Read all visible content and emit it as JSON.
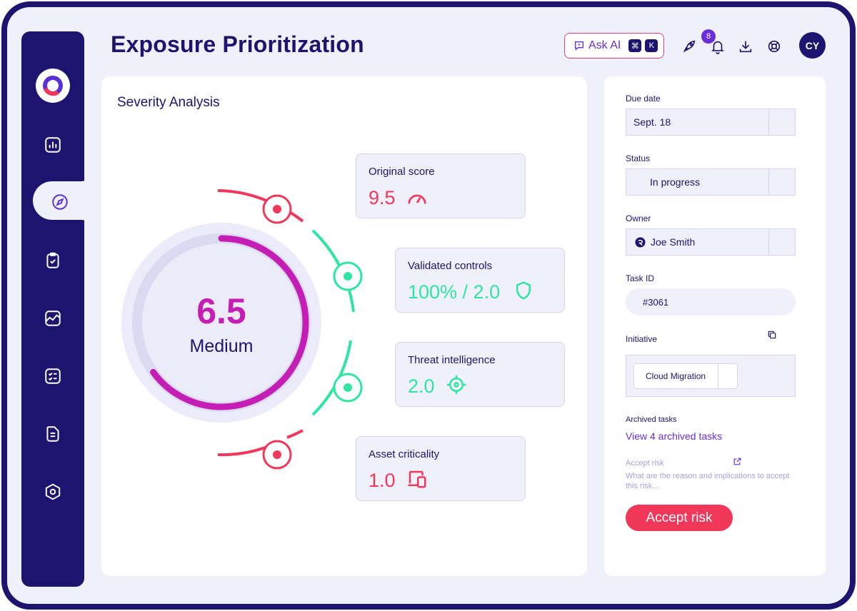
{
  "header": {
    "title": "Exposure Prioritization",
    "ask_ai_label": "Ask AI",
    "shortcut_key1": "⌘",
    "shortcut_key2": "K",
    "notification_count": "8",
    "avatar_initials": "CY"
  },
  "sidebar": {
    "items": [
      {
        "name": "dashboard",
        "icon": "bar-chart-icon"
      },
      {
        "name": "explore",
        "icon": "compass-icon",
        "active": true
      },
      {
        "name": "tasks",
        "icon": "clipboard-check-icon"
      },
      {
        "name": "analytics",
        "icon": "line-chart-icon"
      },
      {
        "name": "checklist",
        "icon": "checklist-icon"
      },
      {
        "name": "reports",
        "icon": "document-icon"
      },
      {
        "name": "settings",
        "icon": "hexagon-settings-icon"
      }
    ]
  },
  "severity": {
    "title": "Severity Analysis",
    "score": "6.5",
    "score_level": "Medium",
    "score_fraction": 0.65,
    "metrics": [
      {
        "label": "Original score",
        "value": "9.5",
        "icon": "gauge-icon",
        "color": "#f2385a"
      },
      {
        "label": "Validated controls",
        "value": "100% / 2.0",
        "icon": "shield-icon",
        "color": "#2ee6a2"
      },
      {
        "label": "Threat intelligence",
        "value": "2.0",
        "icon": "crosshair-icon",
        "color": "#2ee6a2"
      },
      {
        "label": "Asset criticality",
        "value": "1.0",
        "icon": "devices-icon",
        "color": "#f2385a"
      }
    ]
  },
  "details": {
    "due_date_label": "Due date",
    "due_date_value": "Sept. 18",
    "status_label": "Status",
    "status_value": "In progress",
    "owner_label": "Owner",
    "owner_value": "Joe Smith",
    "task_id_label": "Task ID",
    "task_id_value": "#3061",
    "initiative_label": "Initiative",
    "initiative_value": "Cloud Migration",
    "archived_label": "Archived tasks",
    "archived_link": "View 4 archived tasks",
    "accept_risk_label": "Accept risk",
    "accept_risk_placeholder": "What are the reason and implications to accept this risk...",
    "accept_risk_button": "Accept risk"
  },
  "colors": {
    "brand": "#1d1470",
    "accent": "#6a2fd6",
    "danger": "#f2385a",
    "success": "#2ee6a2",
    "score": "#c41eb4"
  }
}
